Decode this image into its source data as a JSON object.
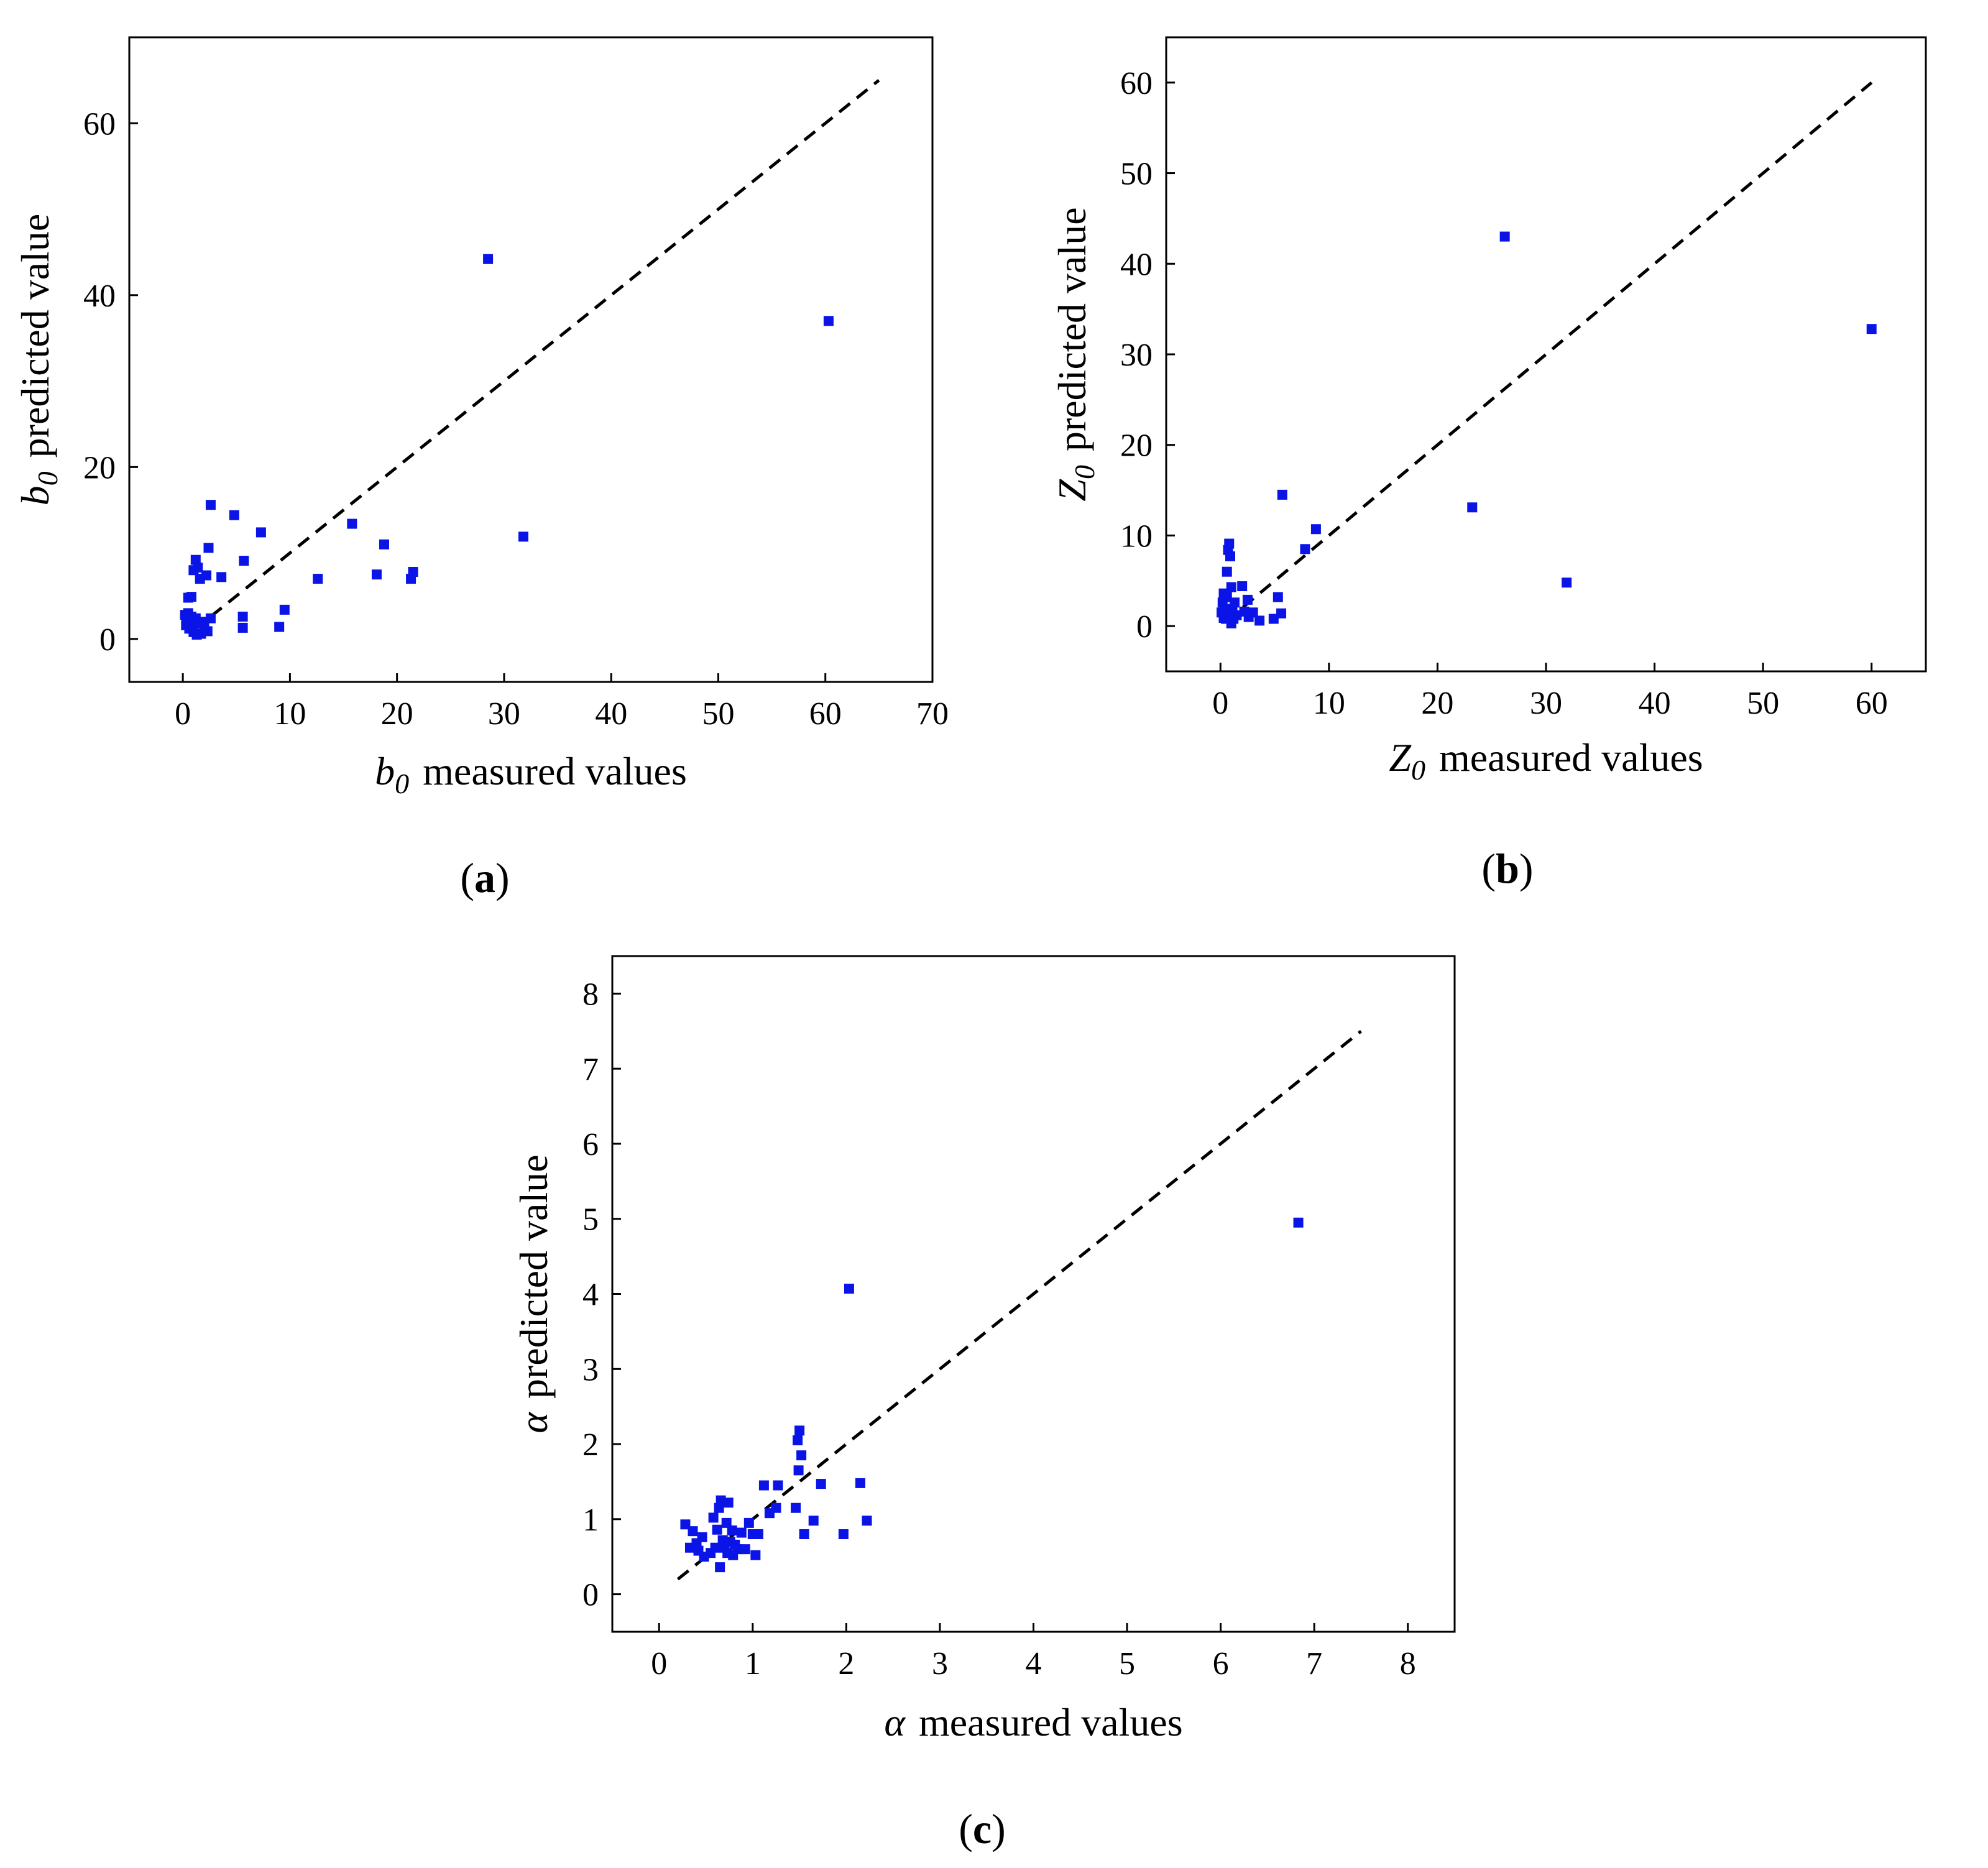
{
  "figure": {
    "marker_color": "#0a14e6",
    "line_color": "#000000"
  },
  "chart_data": [
    {
      "id": "a",
      "type": "scatter",
      "panel_label": "a",
      "title": "",
      "xlabel_sym": "b",
      "xlabel_sub": "0",
      "xlabel_text": "measured values",
      "ylabel_sym": "b",
      "ylabel_sub": "0",
      "ylabel_text": "predicted value",
      "xlim": [
        -5,
        70
      ],
      "ylim": [
        -5,
        70
      ],
      "xticks": [
        0,
        10,
        20,
        30,
        40,
        50,
        60,
        70
      ],
      "yticks": [
        0,
        20,
        40,
        60
      ],
      "ref_line": [
        [
          1,
          1
        ],
        [
          65,
          65
        ]
      ],
      "points": [
        [
          0.2,
          2.8
        ],
        [
          0.3,
          1.6
        ],
        [
          0.4,
          2.2
        ],
        [
          0.5,
          3.0
        ],
        [
          0.5,
          4.8
        ],
        [
          0.6,
          1.2
        ],
        [
          0.7,
          2.0
        ],
        [
          0.8,
          2.6
        ],
        [
          0.8,
          4.9
        ],
        [
          0.9,
          1.4
        ],
        [
          1.0,
          0.8
        ],
        [
          1.0,
          8.0
        ],
        [
          1.2,
          2.4
        ],
        [
          1.2,
          9.2
        ],
        [
          1.3,
          0.5
        ],
        [
          1.4,
          8.3
        ],
        [
          1.5,
          1.8
        ],
        [
          1.6,
          7.0
        ],
        [
          1.7,
          0.6
        ],
        [
          1.8,
          2.0
        ],
        [
          2.0,
          1.3
        ],
        [
          2.2,
          7.4
        ],
        [
          2.3,
          0.9
        ],
        [
          2.4,
          10.6
        ],
        [
          2.6,
          2.4
        ],
        [
          2.6,
          15.6
        ],
        [
          3.6,
          7.2
        ],
        [
          4.8,
          14.4
        ],
        [
          5.6,
          1.3
        ],
        [
          5.6,
          2.6
        ],
        [
          5.7,
          9.1
        ],
        [
          7.3,
          12.4
        ],
        [
          9.0,
          1.4
        ],
        [
          9.5,
          3.4
        ],
        [
          12.6,
          7.0
        ],
        [
          15.8,
          13.4
        ],
        [
          18.1,
          7.5
        ],
        [
          18.8,
          11.0
        ],
        [
          21.3,
          7.0
        ],
        [
          21.5,
          7.8
        ],
        [
          28.5,
          44.2
        ],
        [
          31.8,
          11.9
        ],
        [
          60.3,
          37.0
        ]
      ]
    },
    {
      "id": "b",
      "type": "scatter",
      "panel_label": "b",
      "title": "",
      "xlabel_sym": "Z",
      "xlabel_sub": "0",
      "xlabel_text": "measured values",
      "ylabel_sym": "Z",
      "ylabel_sub": "0",
      "ylabel_text": "predicted value",
      "xlim": [
        -5,
        65
      ],
      "ylim": [
        -5,
        65
      ],
      "xticks": [
        0,
        10,
        20,
        30,
        40,
        50,
        60
      ],
      "yticks": [
        0,
        10,
        20,
        30,
        40,
        50,
        60
      ],
      "ref_line": [
        [
          0.5,
          0.5
        ],
        [
          60,
          60
        ]
      ],
      "points": [
        [
          0.1,
          1.5
        ],
        [
          0.2,
          2.6
        ],
        [
          0.3,
          0.9
        ],
        [
          0.3,
          3.6
        ],
        [
          0.4,
          1.9
        ],
        [
          0.5,
          0.8
        ],
        [
          0.6,
          6.0
        ],
        [
          0.6,
          3.2
        ],
        [
          0.7,
          8.4
        ],
        [
          0.8,
          9.1
        ],
        [
          0.9,
          7.7
        ],
        [
          1.0,
          4.3
        ],
        [
          1.0,
          0.3
        ],
        [
          1.1,
          1.8
        ],
        [
          1.2,
          0.8
        ],
        [
          1.3,
          2.6
        ],
        [
          1.5,
          1.2
        ],
        [
          2.0,
          4.4
        ],
        [
          2.2,
          1.6
        ],
        [
          2.5,
          2.9
        ],
        [
          2.6,
          1.0
        ],
        [
          3.0,
          1.5
        ],
        [
          3.6,
          0.6
        ],
        [
          4.9,
          0.8
        ],
        [
          5.3,
          3.2
        ],
        [
          5.6,
          1.4
        ],
        [
          5.7,
          14.5
        ],
        [
          7.8,
          8.5
        ],
        [
          8.8,
          10.7
        ],
        [
          23.2,
          13.1
        ],
        [
          26.2,
          43.0
        ],
        [
          31.9,
          4.8
        ],
        [
          60.0,
          32.8
        ]
      ]
    },
    {
      "id": "c",
      "type": "scatter",
      "panel_label": "c",
      "title": "",
      "xlabel_sym": "α",
      "xlabel_sub": "",
      "xlabel_text": "measured values",
      "ylabel_sym": "α",
      "ylabel_sub": "",
      "ylabel_text": "predicted value",
      "xlim": [
        -0.5,
        8.5
      ],
      "ylim": [
        -0.5,
        8.5
      ],
      "xticks": [
        0,
        1,
        2,
        3,
        4,
        5,
        6,
        7,
        8
      ],
      "yticks": [
        0,
        1,
        2,
        3,
        4,
        5,
        6,
        7,
        8
      ],
      "ref_line": [
        [
          0.2,
          0.2
        ],
        [
          7.5,
          7.5
        ]
      ],
      "points": [
        [
          0.28,
          0.93
        ],
        [
          0.33,
          0.62
        ],
        [
          0.36,
          0.84
        ],
        [
          0.4,
          0.68
        ],
        [
          0.42,
          0.58
        ],
        [
          0.46,
          0.76
        ],
        [
          0.48,
          0.5
        ],
        [
          0.55,
          0.55
        ],
        [
          0.58,
          1.02
        ],
        [
          0.6,
          0.62
        ],
        [
          0.62,
          0.86
        ],
        [
          0.64,
          1.15
        ],
        [
          0.65,
          0.36
        ],
        [
          0.66,
          1.25
        ],
        [
          0.68,
          0.72
        ],
        [
          0.7,
          0.62
        ],
        [
          0.72,
          0.95
        ],
        [
          0.73,
          0.55
        ],
        [
          0.74,
          1.22
        ],
        [
          0.76,
          0.7
        ],
        [
          0.78,
          0.85
        ],
        [
          0.79,
          0.52
        ],
        [
          0.81,
          0.66
        ],
        [
          0.84,
          0.6
        ],
        [
          0.88,
          0.82
        ],
        [
          0.92,
          0.6
        ],
        [
          0.96,
          0.95
        ],
        [
          1.0,
          0.8
        ],
        [
          1.03,
          0.52
        ],
        [
          1.06,
          0.8
        ],
        [
          1.12,
          1.45
        ],
        [
          1.18,
          1.08
        ],
        [
          1.25,
          1.15
        ],
        [
          1.27,
          1.45
        ],
        [
          1.46,
          1.15
        ],
        [
          1.48,
          2.05
        ],
        [
          1.49,
          1.65
        ],
        [
          1.5,
          2.18
        ],
        [
          1.52,
          1.85
        ],
        [
          1.55,
          0.8
        ],
        [
          1.65,
          0.98
        ],
        [
          1.73,
          1.47
        ],
        [
          1.97,
          0.8
        ],
        [
          2.03,
          4.07
        ],
        [
          2.15,
          1.48
        ],
        [
          2.22,
          0.98
        ],
        [
          6.83,
          4.95
        ]
      ]
    }
  ]
}
